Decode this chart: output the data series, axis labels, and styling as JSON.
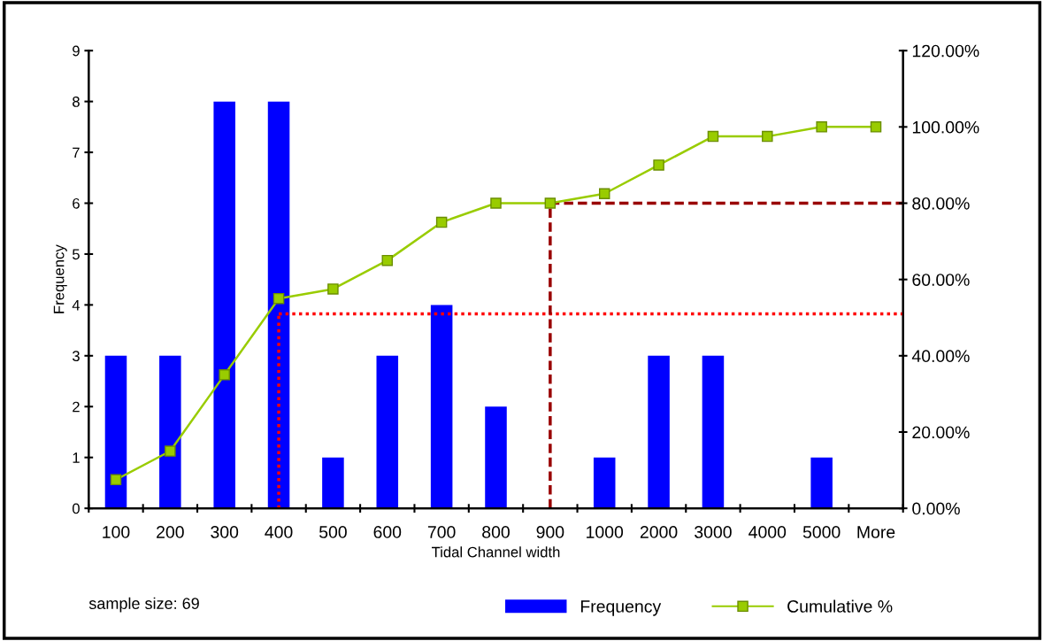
{
  "chart_data": {
    "type": "bar",
    "xlabel": "Tidal Channel width",
    "ylabel": "Frequency",
    "categories": [
      "100",
      "200",
      "300",
      "400",
      "500",
      "600",
      "700",
      "800",
      "900",
      "1000",
      "2000",
      "3000",
      "4000",
      "5000",
      "More"
    ],
    "series": [
      {
        "name": "Frequency",
        "color": "#0000ff",
        "values": [
          3,
          3,
          8,
          8,
          1,
          3,
          4,
          2,
          0,
          1,
          3,
          3,
          0,
          1,
          0
        ]
      },
      {
        "name": "Cumulative %",
        "type": "line",
        "axis": "y2",
        "color": "#99cc00",
        "marker": "square",
        "values": [
          7.5,
          15,
          35,
          55,
          57.5,
          65,
          75,
          80,
          80,
          82.5,
          90,
          97.5,
          97.5,
          100,
          100
        ]
      }
    ],
    "ylim": [
      0,
      9
    ],
    "yticks": [
      0,
      1,
      2,
      3,
      4,
      5,
      6,
      7,
      8,
      9
    ],
    "y2lim": [
      0,
      120
    ],
    "y2ticks": [
      {
        "value": 0,
        "label": "0.00%"
      },
      {
        "value": 20,
        "label": "20.00%"
      },
      {
        "value": 40,
        "label": "40.00%"
      },
      {
        "value": 60,
        "label": "60.00%"
      },
      {
        "value": 80,
        "label": "80.00%"
      },
      {
        "value": 100,
        "label": "100.00%"
      },
      {
        "value": 120,
        "label": "120.00%"
      }
    ],
    "ref_lines": [
      {
        "axis": "x",
        "value": "400",
        "color": "#ff0000",
        "line_style": "dotted"
      },
      {
        "axis": "y2",
        "value": 51,
        "color": "#ff0000",
        "line_style": "dotted"
      },
      {
        "axis": "x",
        "value": "900",
        "color": "#990000",
        "line_style": "dashed"
      },
      {
        "axis": "y2",
        "value": 80,
        "color": "#990000",
        "line_style": "dashed"
      }
    ],
    "annotations": [
      "sample size: 69"
    ],
    "grid": false,
    "legend": "bottom right"
  }
}
